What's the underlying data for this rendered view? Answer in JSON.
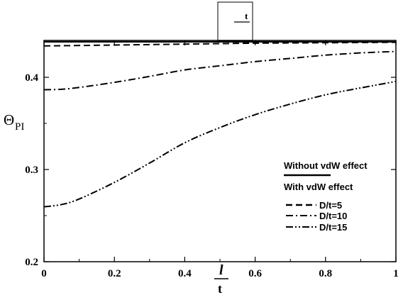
{
  "chart_data": {
    "type": "line",
    "xlabel": {
      "numerator": "l",
      "denominator": "t"
    },
    "ylabel": {
      "main": "Θ",
      "subscript": "PI"
    },
    "xlim": [
      0,
      1
    ],
    "ylim": [
      0.2,
      0.44
    ],
    "x_ticks": [
      0,
      0.2,
      0.4,
      0.6,
      0.8,
      1
    ],
    "x_tick_labels": [
      "0",
      "0.2",
      "0.4",
      "0.6",
      "0.8",
      "1"
    ],
    "y_ticks": [
      0.2,
      0.3,
      0.4
    ],
    "y_tick_labels": [
      "0.2",
      "0.3",
      "0.4"
    ],
    "inset_label": "t",
    "legend": {
      "placement": "right",
      "header_top": "Without vdW effect",
      "header_bottom": "With vdW effect",
      "entries": [
        {
          "label": "D/t=5",
          "style": "dashed"
        },
        {
          "label": "D/t=10",
          "style": "dash-dot"
        },
        {
          "label": "D/t=15",
          "style": "dash-dot-dot"
        }
      ]
    },
    "series": [
      {
        "style": "solid",
        "x": [
          0,
          0.2,
          0.4,
          0.6,
          0.8,
          1
        ],
        "y": [
          0.4385,
          0.4385,
          0.4385,
          0.4385,
          0.4385,
          0.4385
        ]
      },
      {
        "style": "dashed",
        "x": [
          0,
          0.1,
          0.2,
          0.4,
          0.6,
          0.8,
          1
        ],
        "y": [
          0.434,
          0.4345,
          0.435,
          0.436,
          0.437,
          0.4375,
          0.438
        ]
      },
      {
        "style": "dash-dot",
        "x": [
          0,
          0.05,
          0.1,
          0.2,
          0.3,
          0.4,
          0.5,
          0.6,
          0.7,
          0.8,
          0.9,
          1
        ],
        "y": [
          0.3865,
          0.387,
          0.389,
          0.3945,
          0.401,
          0.408,
          0.4125,
          0.417,
          0.4205,
          0.424,
          0.4265,
          0.428
        ]
      },
      {
        "style": "dash-dot-dot",
        "x": [
          0,
          0.05,
          0.1,
          0.2,
          0.3,
          0.4,
          0.5,
          0.6,
          0.7,
          0.8,
          0.9,
          1
        ],
        "y": [
          0.2595,
          0.262,
          0.268,
          0.286,
          0.307,
          0.329,
          0.3455,
          0.3595,
          0.371,
          0.381,
          0.3885,
          0.3955
        ]
      }
    ]
  }
}
